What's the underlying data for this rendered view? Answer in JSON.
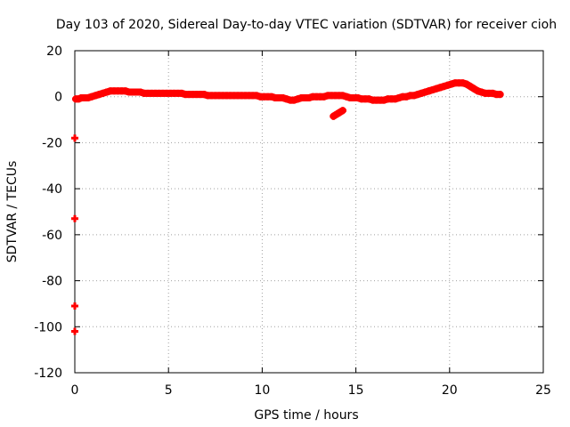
{
  "chart_data": {
    "type": "scatter",
    "title": "Day 103 of 2020, Sidereal Day-to-day VTEC variation (SDTVAR) for receiver cioh",
    "xlabel": "GPS time / hours",
    "ylabel": "SDTVAR / TECUs",
    "xlim": [
      0,
      25
    ],
    "ylim": [
      -120,
      20
    ],
    "xticks": [
      0,
      5,
      10,
      15,
      20,
      25
    ],
    "yticks": [
      20,
      0,
      -20,
      -40,
      -60,
      -80,
      -100,
      -120
    ],
    "grid": true,
    "legend": "none",
    "marker": "plus",
    "color": "#ff0000",
    "series": [
      {
        "x": [
          0.05,
          0.2,
          0.35,
          0.5,
          0.7,
          0.9,
          1.1,
          1.3,
          1.5,
          1.7,
          1.9,
          2.1,
          2.3,
          2.5,
          2.7,
          2.9,
          3.1,
          3.3,
          3.5,
          3.7,
          3.9,
          4.1,
          4.3,
          4.5,
          4.7,
          4.9,
          5.1,
          5.3,
          5.5,
          5.7,
          5.9,
          6.1,
          6.3,
          6.5,
          6.7,
          6.9,
          7.1,
          7.3,
          7.5,
          7.7,
          7.9,
          8.1,
          8.3,
          8.5,
          8.7,
          8.9,
          9.1,
          9.3,
          9.5,
          9.7,
          9.9,
          10.1,
          10.3,
          10.5,
          10.7,
          10.9,
          11.1,
          11.3,
          11.5,
          11.7,
          11.9,
          12.1,
          12.3,
          12.5,
          12.7,
          12.9,
          13.1,
          13.3,
          13.5,
          13.7,
          13.9,
          14.1,
          14.3,
          14.5,
          14.7,
          14.9,
          15.1,
          15.3,
          15.5,
          15.7,
          15.9,
          16.1,
          16.3,
          16.5,
          16.7,
          16.9,
          17.1,
          17.3,
          17.5,
          17.7,
          17.9,
          18.1,
          18.3,
          18.5,
          18.7,
          18.9,
          19.1,
          19.3,
          19.5,
          19.7,
          19.9,
          20.1,
          20.3,
          20.5,
          20.7,
          20.9,
          21.1,
          21.3,
          21.5,
          21.7,
          21.9,
          22.1,
          22.3,
          22.5,
          22.7
        ],
        "y": [
          -1,
          -1,
          -0.5,
          -0.5,
          -0.5,
          0,
          0.5,
          1,
          1.5,
          2,
          2.5,
          2.5,
          2.5,
          2.5,
          2.5,
          2,
          2,
          2,
          2,
          1.5,
          1.5,
          1.5,
          1.5,
          1.5,
          1.5,
          1.5,
          1.5,
          1.5,
          1.5,
          1.5,
          1,
          1,
          1,
          1,
          1,
          1,
          0.5,
          0.5,
          0.5,
          0.5,
          0.5,
          0.5,
          0.5,
          0.5,
          0.5,
          0.5,
          0.5,
          0.5,
          0.5,
          0.5,
          0,
          0,
          0,
          0,
          -0.5,
          -0.5,
          -0.5,
          -1,
          -1.5,
          -1.5,
          -1,
          -0.5,
          -0.5,
          -0.5,
          0,
          0,
          0,
          0,
          0.5,
          0.5,
          0.5,
          0.5,
          0.5,
          0,
          -0.5,
          -0.5,
          -0.5,
          -1,
          -1,
          -1,
          -1.5,
          -1.5,
          -1.5,
          -1.5,
          -1,
          -1,
          -1,
          -0.5,
          0,
          0,
          0.5,
          0.5,
          1,
          1.5,
          2,
          2.5,
          3,
          3.5,
          4,
          4.5,
          5,
          5.5,
          6,
          6,
          6,
          5.5,
          4.5,
          3.5,
          2.5,
          2,
          1.5,
          1.5,
          1.5,
          1,
          1
        ]
      },
      {
        "x": [
          13.8,
          13.9,
          14.0,
          14.1,
          14.2,
          14.3
        ],
        "y": [
          -8.5,
          -8,
          -7.5,
          -7,
          -6.5,
          -6
        ]
      },
      {
        "x": [
          0.0,
          0.0,
          0.0,
          0.0
        ],
        "y": [
          -18,
          -53,
          -91,
          -102
        ]
      }
    ]
  }
}
